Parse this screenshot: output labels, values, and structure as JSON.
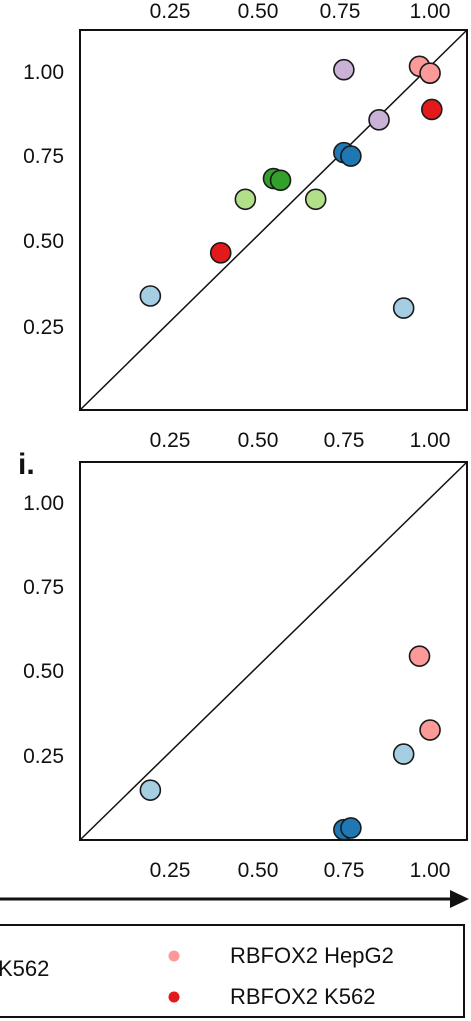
{
  "colors": {
    "axis": "#111111",
    "marker_edge": "#1a1a1a",
    "light_blue": "#a6cee3",
    "dark_blue": "#1f78b4",
    "light_green": "#b2df8a",
    "dark_green": "#33a02c",
    "light_red": "#fb9a99",
    "dark_red": "#e31a1c",
    "light_purple": "#cab2d6"
  },
  "top_axis": {
    "tick_labels": [
      "0.25",
      "0.50",
      "0.75",
      "1.00"
    ]
  },
  "legend": {
    "items": [
      {
        "label": "K562",
        "color": "#e31a1c"
      },
      {
        "label": "RBFOX2 HepG2",
        "color": "#fb9a99"
      },
      {
        "label": "RBFOX2 K562",
        "color": "#e31a1c"
      }
    ]
  },
  "chart_data": [
    {
      "type": "scatter",
      "panel_label": "",
      "xticks": [
        "0.25",
        "0.50",
        "0.75",
        "1.00"
      ],
      "yticks": [
        "0.25",
        "0.50",
        "0.75",
        "1.00"
      ],
      "xlim": [
        0.0,
        1.1
      ],
      "ylim": [
        0.0,
        1.1
      ],
      "diagonal": true,
      "grid": false,
      "points": [
        {
          "x": 0.2,
          "y": 0.33,
          "color": "#a6cee3"
        },
        {
          "x": 0.4,
          "y": 0.455,
          "color": "#e31a1c"
        },
        {
          "x": 0.47,
          "y": 0.61,
          "color": "#b2df8a"
        },
        {
          "x": 0.55,
          "y": 0.67,
          "color": "#33a02c"
        },
        {
          "x": 0.57,
          "y": 0.665,
          "color": "#33a02c"
        },
        {
          "x": 0.67,
          "y": 0.61,
          "color": "#b2df8a"
        },
        {
          "x": 0.75,
          "y": 0.985,
          "color": "#cab2d6"
        },
        {
          "x": 0.75,
          "y": 0.745,
          "color": "#1f78b4"
        },
        {
          "x": 0.77,
          "y": 0.735,
          "color": "#1f78b4"
        },
        {
          "x": 0.85,
          "y": 0.84,
          "color": "#cab2d6"
        },
        {
          "x": 0.92,
          "y": 0.295,
          "color": "#a6cee3"
        },
        {
          "x": 0.965,
          "y": 0.995,
          "color": "#fb9a99"
        },
        {
          "x": 0.995,
          "y": 0.975,
          "color": "#fb9a99"
        },
        {
          "x": 1.0,
          "y": 0.87,
          "color": "#e31a1c"
        }
      ]
    },
    {
      "type": "scatter",
      "panel_label": "i.",
      "xticks": [
        "0.25",
        "0.50",
        "0.75",
        "1.00"
      ],
      "yticks": [
        "0.25",
        "0.50",
        "0.75",
        "1.00"
      ],
      "xlim": [
        0.0,
        1.1
      ],
      "ylim": [
        0.0,
        1.1
      ],
      "diagonal": true,
      "grid": false,
      "points": [
        {
          "x": 0.2,
          "y": 0.145,
          "color": "#a6cee3"
        },
        {
          "x": 0.75,
          "y": 0.03,
          "color": "#1f78b4"
        },
        {
          "x": 0.77,
          "y": 0.035,
          "color": "#1f78b4"
        },
        {
          "x": 0.92,
          "y": 0.25,
          "color": "#a6cee3"
        },
        {
          "x": 0.965,
          "y": 0.535,
          "color": "#fb9a99"
        },
        {
          "x": 0.995,
          "y": 0.32,
          "color": "#fb9a99"
        }
      ]
    }
  ]
}
